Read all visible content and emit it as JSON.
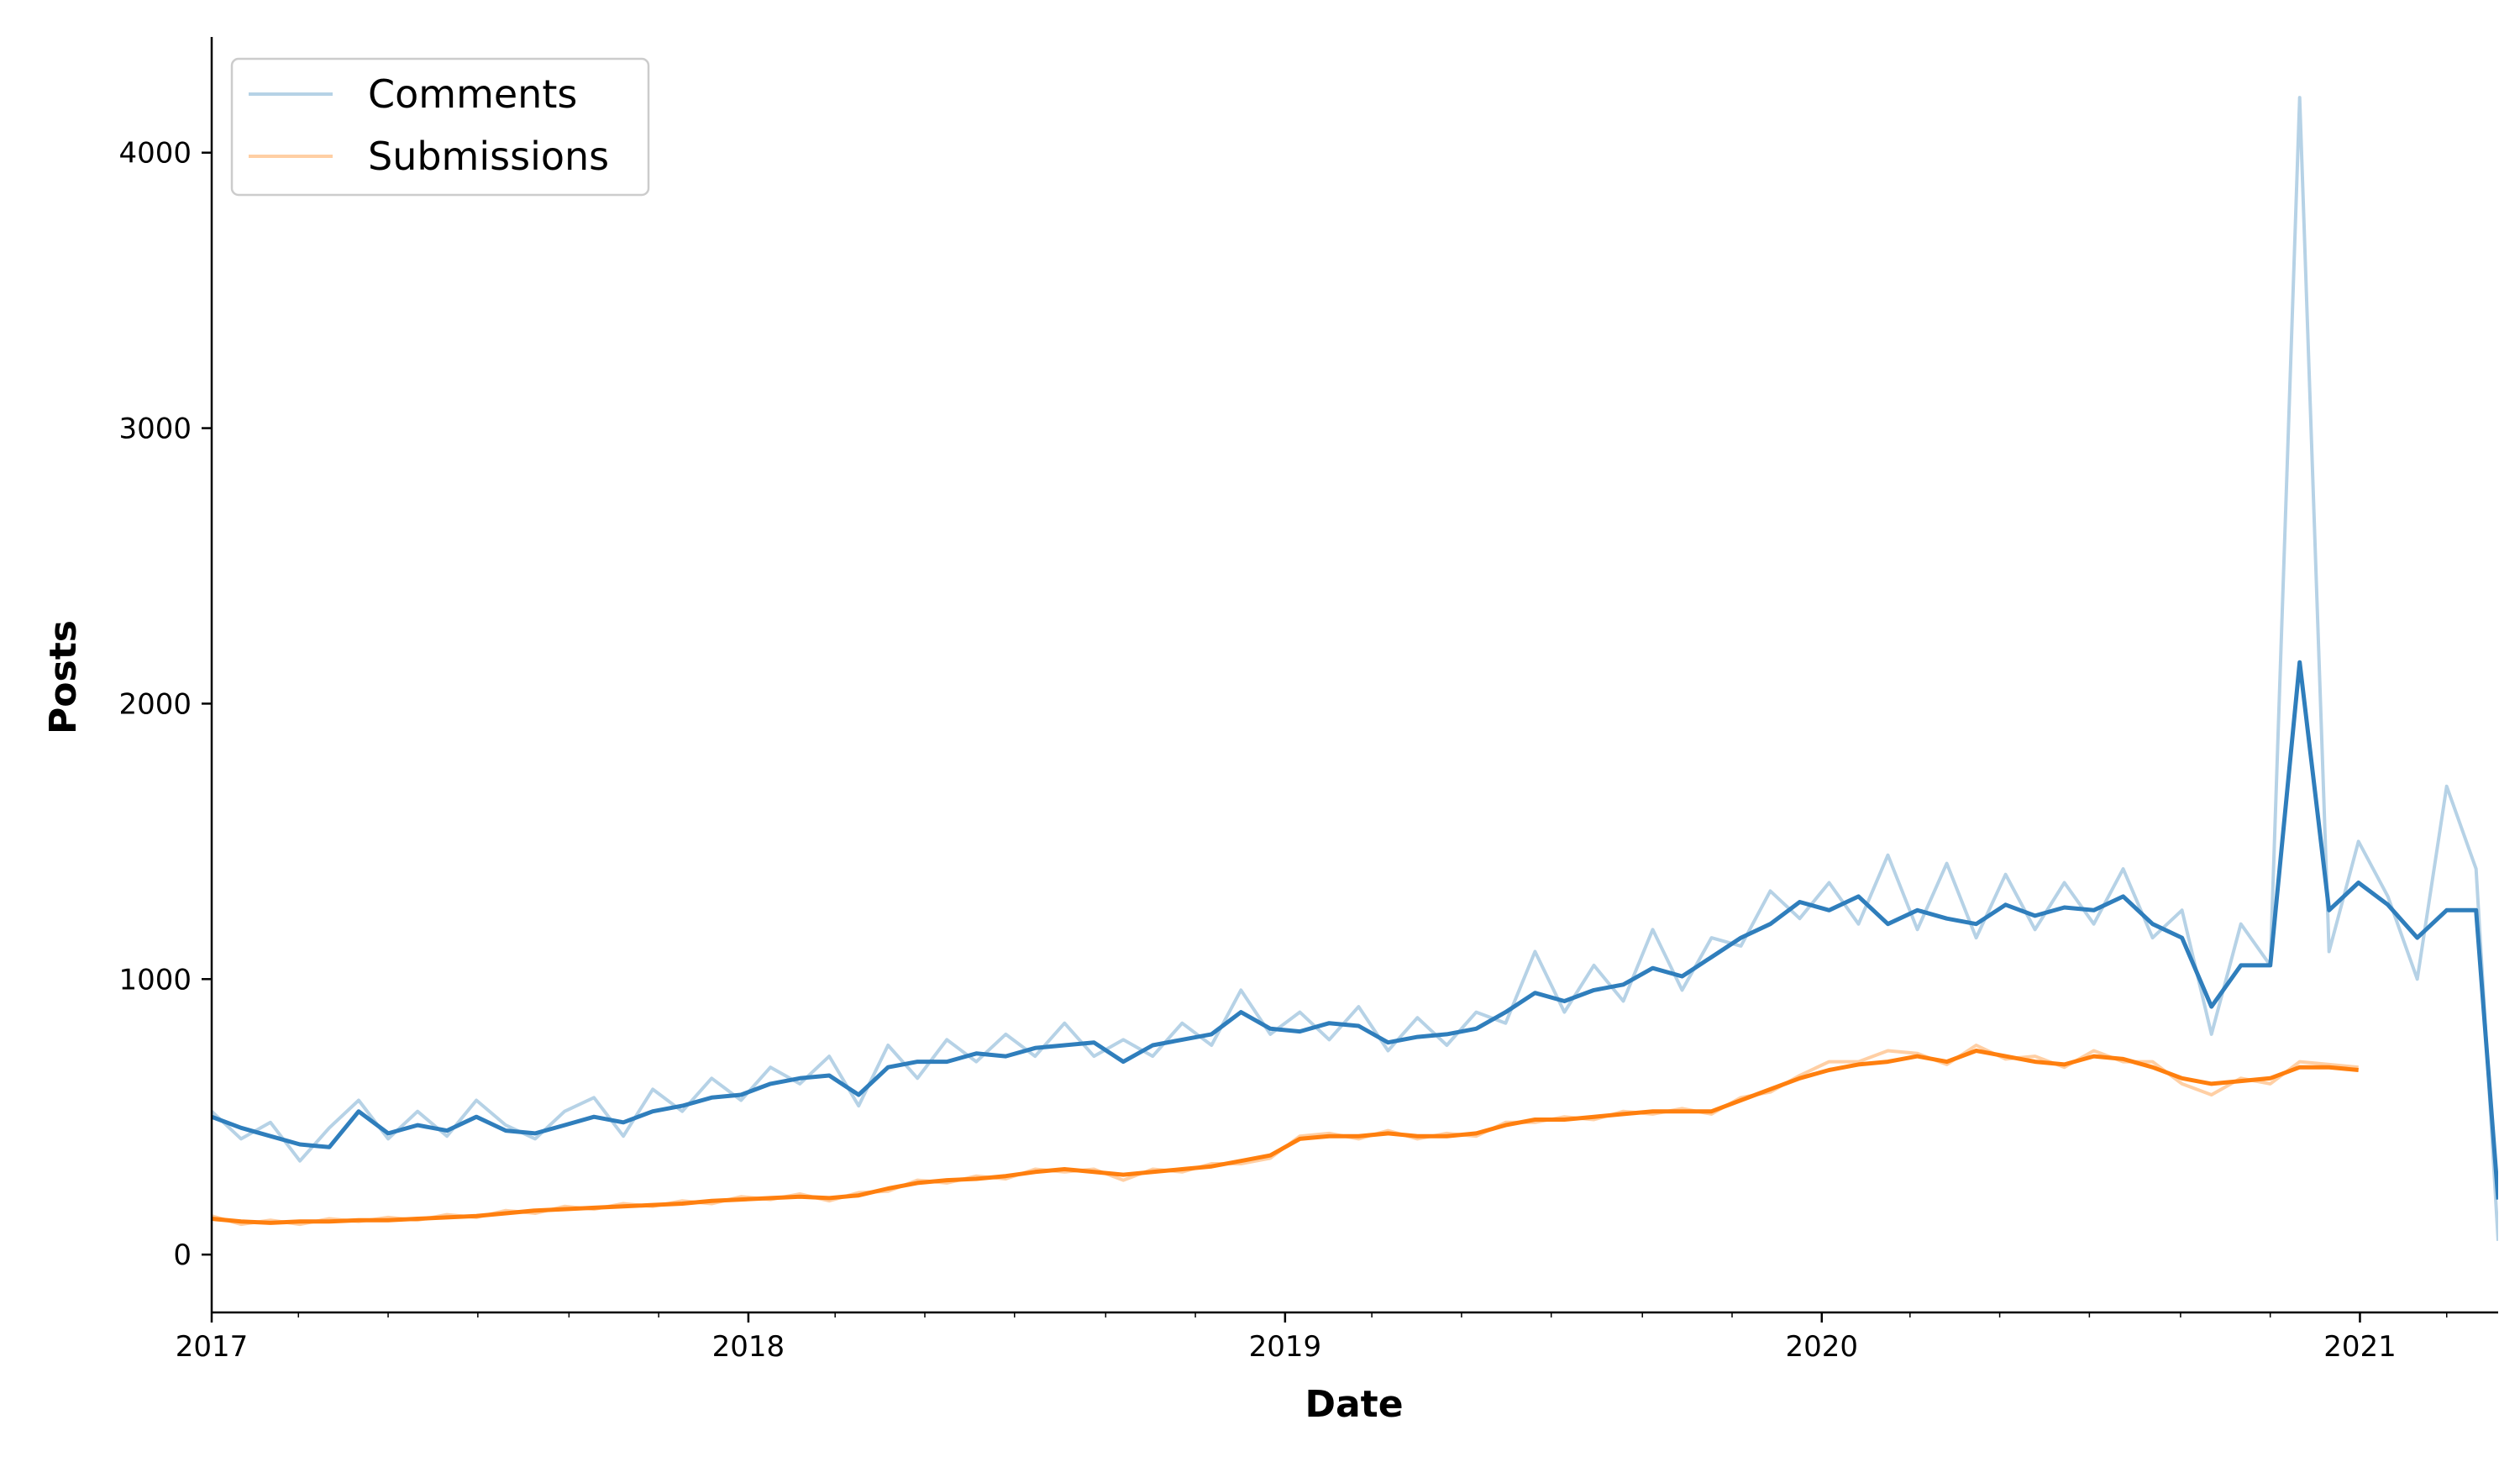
{
  "chart_data": {
    "type": "line",
    "xlabel": "Date",
    "ylabel": "Posts",
    "xlim": [
      "2017-01-01",
      "2021-04-05"
    ],
    "ylim": [
      -210,
      4420
    ],
    "x_ticks": [
      "2017",
      "2018",
      "2019",
      "2020",
      "2021"
    ],
    "y_ticks": [
      0,
      1000,
      2000,
      3000,
      4000
    ],
    "grid": false,
    "legend_position": "top-left",
    "series": [
      {
        "name": "Comments",
        "raw_color": "#b6d2e6",
        "smooth_color": "#2f7ebc",
        "dates": [
          "2017-01-01",
          "2017-01-21",
          "2017-02-10",
          "2017-03-02",
          "2017-03-22",
          "2017-04-11",
          "2017-05-01",
          "2017-05-21",
          "2017-06-10",
          "2017-06-30",
          "2017-07-20",
          "2017-08-09",
          "2017-08-29",
          "2017-09-18",
          "2017-10-08",
          "2017-10-28",
          "2017-11-17",
          "2017-12-07",
          "2017-12-27",
          "2018-01-16",
          "2018-02-05",
          "2018-02-25",
          "2018-03-17",
          "2018-04-06",
          "2018-04-26",
          "2018-05-16",
          "2018-06-05",
          "2018-06-25",
          "2018-07-15",
          "2018-08-04",
          "2018-08-24",
          "2018-09-13",
          "2018-10-03",
          "2018-10-23",
          "2018-11-12",
          "2018-12-02",
          "2018-12-22",
          "2019-01-11",
          "2019-01-31",
          "2019-02-20",
          "2019-03-12",
          "2019-04-01",
          "2019-04-21",
          "2019-05-11",
          "2019-05-31",
          "2019-06-20",
          "2019-07-10",
          "2019-07-30",
          "2019-08-19",
          "2019-09-08",
          "2019-09-28",
          "2019-10-18",
          "2019-11-07",
          "2019-11-27",
          "2019-12-17",
          "2020-01-06",
          "2020-01-26",
          "2020-02-15",
          "2020-03-06",
          "2020-03-26",
          "2020-04-15",
          "2020-05-05",
          "2020-05-25",
          "2020-06-14",
          "2020-07-04",
          "2020-07-24",
          "2020-08-13",
          "2020-09-02",
          "2020-09-22",
          "2020-10-12",
          "2020-11-01",
          "2020-11-21",
          "2020-12-11",
          "2020-12-31",
          "2021-01-20",
          "2021-02-09",
          "2021-03-01",
          "2021-03-21",
          "2021-04-05"
        ],
        "smooth": [
          500,
          460,
          430,
          400,
          390,
          520,
          440,
          470,
          450,
          500,
          450,
          440,
          470,
          500,
          480,
          520,
          540,
          570,
          580,
          620,
          640,
          650,
          580,
          680,
          700,
          700,
          730,
          720,
          750,
          760,
          770,
          700,
          760,
          780,
          800,
          880,
          820,
          810,
          840,
          830,
          770,
          790,
          800,
          820,
          880,
          950,
          920,
          960,
          980,
          1040,
          1010,
          1080,
          1150,
          1200,
          1280,
          1250,
          1300,
          1200,
          1250,
          1220,
          1200,
          1270,
          1230,
          1260,
          1250,
          1300,
          1200,
          1150,
          900,
          1050,
          1050,
          2150,
          1250,
          1350,
          1270,
          1150,
          1250,
          1250,
          200
        ],
        "raw": [
          520,
          420,
          480,
          340,
          460,
          560,
          420,
          520,
          430,
          560,
          470,
          420,
          520,
          570,
          430,
          600,
          520,
          640,
          560,
          680,
          620,
          720,
          540,
          760,
          640,
          780,
          700,
          800,
          720,
          840,
          720,
          780,
          720,
          840,
          760,
          960,
          800,
          880,
          780,
          900,
          740,
          860,
          760,
          880,
          840,
          1100,
          880,
          1050,
          920,
          1180,
          960,
          1150,
          1120,
          1320,
          1220,
          1350,
          1200,
          1450,
          1180,
          1420,
          1150,
          1380,
          1180,
          1350,
          1200,
          1400,
          1150,
          1250,
          800,
          1200,
          1050,
          4200,
          1100,
          1500,
          1300,
          1000,
          1700,
          1400,
          50
        ]
      },
      {
        "name": "Submissions",
        "raw_color": "#ffcfa4",
        "smooth_color": "#ff7f0e",
        "dates": [
          "2017-01-01",
          "2017-01-21",
          "2017-02-10",
          "2017-03-02",
          "2017-03-22",
          "2017-04-11",
          "2017-05-01",
          "2017-05-21",
          "2017-06-10",
          "2017-06-30",
          "2017-07-20",
          "2017-08-09",
          "2017-08-29",
          "2017-09-18",
          "2017-10-08",
          "2017-10-28",
          "2017-11-17",
          "2017-12-07",
          "2017-12-27",
          "2018-01-16",
          "2018-02-05",
          "2018-02-25",
          "2018-03-17",
          "2018-04-06",
          "2018-04-26",
          "2018-05-16",
          "2018-06-05",
          "2018-06-25",
          "2018-07-15",
          "2018-08-04",
          "2018-08-24",
          "2018-09-13",
          "2018-10-03",
          "2018-10-23",
          "2018-11-12",
          "2018-12-02",
          "2018-12-22",
          "2019-01-11",
          "2019-01-31",
          "2019-02-20",
          "2019-03-12",
          "2019-04-01",
          "2019-04-21",
          "2019-05-11",
          "2019-05-31",
          "2019-06-20",
          "2019-07-10",
          "2019-07-30",
          "2019-08-19",
          "2019-09-08",
          "2019-09-28",
          "2019-10-18",
          "2019-11-07",
          "2019-11-27",
          "2019-12-17",
          "2020-01-06",
          "2020-01-26",
          "2020-02-15",
          "2020-03-06",
          "2020-03-26",
          "2020-04-15",
          "2020-05-05",
          "2020-05-25",
          "2020-06-14",
          "2020-07-04",
          "2020-07-24",
          "2020-08-13",
          "2020-09-02",
          "2020-09-22",
          "2020-10-12",
          "2020-11-01",
          "2020-11-21",
          "2020-12-11",
          "2020-12-31"
        ],
        "smooth": [
          130,
          120,
          115,
          120,
          120,
          125,
          125,
          130,
          135,
          140,
          150,
          160,
          165,
          170,
          175,
          180,
          185,
          195,
          200,
          205,
          210,
          205,
          215,
          240,
          260,
          270,
          275,
          285,
          300,
          310,
          300,
          290,
          300,
          310,
          320,
          340,
          360,
          420,
          430,
          430,
          440,
          430,
          430,
          440,
          470,
          490,
          490,
          500,
          510,
          520,
          520,
          520,
          560,
          600,
          640,
          670,
          690,
          700,
          720,
          700,
          740,
          720,
          700,
          690,
          720,
          710,
          680,
          640,
          620,
          630,
          640,
          680,
          680,
          670
        ],
        "raw": [
          140,
          110,
          125,
          110,
          130,
          120,
          135,
          125,
          145,
          135,
          160,
          150,
          175,
          165,
          185,
          175,
          195,
          185,
          210,
          200,
          220,
          195,
          225,
          230,
          270,
          260,
          285,
          275,
          310,
          300,
          310,
          270,
          310,
          300,
          330,
          330,
          350,
          430,
          440,
          420,
          450,
          420,
          440,
          430,
          480,
          480,
          500,
          490,
          520,
          510,
          530,
          510,
          570,
          590,
          650,
          700,
          700,
          740,
          730,
          690,
          760,
          710,
          720,
          680,
          740,
          700,
          700,
          620,
          580,
          640,
          620,
          700,
          690,
          680
        ]
      }
    ]
  }
}
